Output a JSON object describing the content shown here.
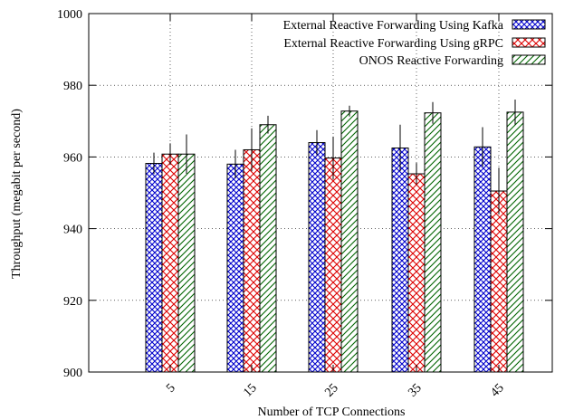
{
  "chart_data": {
    "type": "bar",
    "title": "",
    "xlabel": "Number of TCP Connections",
    "ylabel": "Throughput (megabit per second)",
    "categories": [
      "5",
      "15",
      "25",
      "35",
      "45"
    ],
    "ylim": [
      900,
      1000
    ],
    "yticks": [
      "900",
      "920",
      "940",
      "960",
      "980",
      "1000"
    ],
    "grid": true,
    "legend_position": "top-right",
    "series": [
      {
        "name": "External Reactive Forwarding Using Kafka",
        "color": "#0000cc",
        "pattern": "crosshatch",
        "values": [
          958.2,
          958.0,
          964.0,
          962.5,
          962.8
        ],
        "error": [
          3.0,
          4.0,
          3.5,
          6.5,
          5.5
        ]
      },
      {
        "name": "External Reactive Forwarding Using gRPC",
        "color": "#dd0000",
        "pattern": "diagonal-cross",
        "values": [
          960.8,
          962.0,
          959.7,
          955.3,
          950.5
        ],
        "error": [
          3.0,
          6.0,
          6.0,
          3.0,
          6.5
        ]
      },
      {
        "name": "ONOS Reactive Forwarding",
        "color": "#006400",
        "pattern": "diagonal",
        "values": [
          960.8,
          969.0,
          972.8,
          972.3,
          972.5
        ],
        "error": [
          5.5,
          2.5,
          1.5,
          3.0,
          3.5
        ]
      }
    ]
  }
}
